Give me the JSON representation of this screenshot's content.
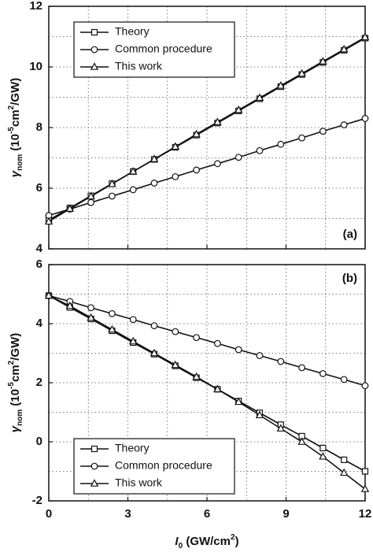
{
  "charts": [
    {
      "chart_data": {
        "type": "line",
        "label": "(a)",
        "label_loc": "lower right",
        "ylabel_parts": [
          "γ",
          "nom",
          " (10",
          "-5",
          "cm",
          "2",
          "/GW)"
        ],
        "x": [
          0,
          0.8,
          1.6,
          2.4,
          3.2,
          4,
          4.8,
          5.6,
          6.4,
          7.2,
          8,
          8.8,
          9.6,
          10.4,
          11.2,
          12
        ],
        "series": [
          {
            "name": "Theory",
            "marker": "square",
            "color": "#111111",
            "values": [
              4.95,
              5.35,
              5.75,
              6.15,
              6.55,
              6.95,
              7.35,
              7.75,
              8.15,
              8.55,
              8.95,
              9.35,
              9.75,
              10.15,
              10.55,
              10.95
            ]
          },
          {
            "name": "Common procedure",
            "marker": "circle",
            "color": "#111111",
            "values": [
              5.1,
              5.31,
              5.53,
              5.74,
              5.95,
              6.17,
              6.38,
              6.6,
              6.81,
              7.02,
              7.24,
              7.45,
              7.66,
              7.88,
              8.09,
              8.3
            ]
          },
          {
            "name": "This work",
            "marker": "triangle",
            "color": "#111111",
            "values": [
              4.9,
              5.32,
              5.73,
              6.14,
              6.55,
              6.96,
              7.37,
              7.78,
              8.18,
              8.58,
              8.98,
              9.38,
              9.78,
              10.18,
              10.58,
              10.98
            ]
          }
        ],
        "xlim": [
          0,
          12
        ],
        "xticks": [
          0,
          3,
          6,
          9,
          12
        ],
        "xminor": [
          1.5,
          4.5,
          7.5,
          10.5
        ],
        "ylim": [
          4,
          12
        ],
        "yticks": [
          4,
          6,
          8,
          10,
          12
        ],
        "yminor": [
          5,
          7,
          9,
          11
        ],
        "grid": true,
        "legend": "upper left"
      }
    },
    {
      "chart_data": {
        "type": "line",
        "label": "(b)",
        "label_loc": "upper right",
        "ylabel_parts": [
          "γ",
          "nom",
          " (10",
          "-5",
          "cm",
          "2",
          "/GW)"
        ],
        "xlabel_parts": [
          "I",
          "0",
          " (GW/cm",
          "2",
          ")"
        ],
        "x": [
          0,
          0.8,
          1.6,
          2.4,
          3.2,
          4,
          4.8,
          5.6,
          6.4,
          7.2,
          8,
          8.8,
          9.6,
          10.4,
          11.2,
          12
        ],
        "series": [
          {
            "name": "Theory",
            "marker": "square",
            "color": "#111111",
            "values": [
              4.95,
              4.55,
              4.16,
              3.76,
              3.36,
              2.97,
              2.57,
              2.17,
              1.78,
              1.38,
              0.98,
              0.58,
              0.19,
              -0.21,
              -0.61,
              -1.0
            ]
          },
          {
            "name": "Common procedure",
            "marker": "circle",
            "color": "#111111",
            "values": [
              4.95,
              4.75,
              4.54,
              4.34,
              4.14,
              3.93,
              3.73,
              3.53,
              3.33,
              3.12,
              2.92,
              2.72,
              2.51,
              2.31,
              2.11,
              1.9
            ]
          },
          {
            "name": "This work",
            "marker": "triangle",
            "color": "#111111",
            "values": [
              4.95,
              4.6,
              4.2,
              3.8,
              3.4,
              3.0,
              2.6,
              2.2,
              1.78,
              1.35,
              0.9,
              0.45,
              0.0,
              -0.5,
              -1.05,
              -1.6
            ]
          }
        ],
        "xlim": [
          0,
          12
        ],
        "xticks": [
          0,
          3,
          6,
          9,
          12
        ],
        "xminor": [
          1.5,
          4.5,
          7.5,
          10.5
        ],
        "ylim": [
          -2,
          6
        ],
        "yticks": [
          -2,
          0,
          2,
          4,
          6
        ],
        "yminor": [
          -1,
          1,
          3,
          5
        ],
        "grid": true,
        "legend": "lower left"
      }
    }
  ]
}
